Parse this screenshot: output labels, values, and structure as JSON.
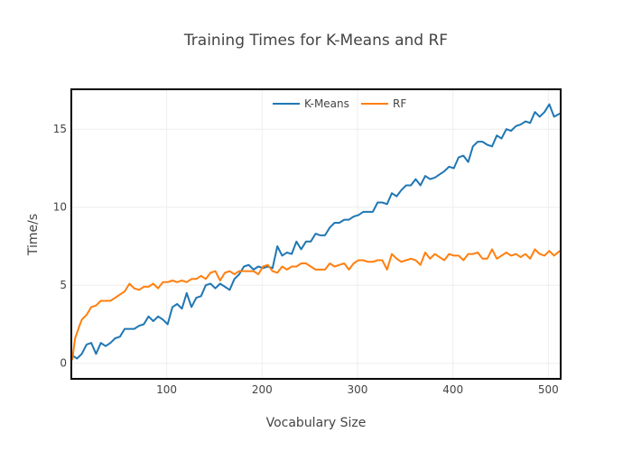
{
  "chart_data": {
    "type": "line",
    "title": "Training Times for K-Means and RF",
    "xlabel": "Vocabulary Size",
    "ylabel": "Time/s",
    "xlim": [
      1,
      512
    ],
    "ylim": [
      -1,
      17.5
    ],
    "xticks": [
      100,
      200,
      300,
      400,
      500
    ],
    "yticks": [
      0,
      5,
      10,
      15
    ],
    "grid": true,
    "legend_position": "top-center",
    "series": [
      {
        "name": "K-Means",
        "color": "#1f77b4",
        "points": [
          [
            1,
            0.5
          ],
          [
            6,
            0.3
          ],
          [
            11,
            0.6
          ],
          [
            16,
            1.2
          ],
          [
            21,
            1.3
          ],
          [
            26,
            0.6
          ],
          [
            31,
            1.3
          ],
          [
            36,
            1.1
          ],
          [
            41,
            1.3
          ],
          [
            46,
            1.6
          ],
          [
            51,
            1.7
          ],
          [
            56,
            2.2
          ],
          [
            61,
            2.2
          ],
          [
            66,
            2.2
          ],
          [
            71,
            2.4
          ],
          [
            76,
            2.5
          ],
          [
            81,
            3.0
          ],
          [
            86,
            2.7
          ],
          [
            91,
            3.0
          ],
          [
            96,
            2.8
          ],
          [
            101,
            2.5
          ],
          [
            106,
            3.6
          ],
          [
            111,
            3.8
          ],
          [
            116,
            3.5
          ],
          [
            121,
            4.5
          ],
          [
            126,
            3.6
          ],
          [
            131,
            4.2
          ],
          [
            136,
            4.3
          ],
          [
            141,
            5.0
          ],
          [
            146,
            5.1
          ],
          [
            151,
            4.8
          ],
          [
            156,
            5.1
          ],
          [
            161,
            4.9
          ],
          [
            166,
            4.7
          ],
          [
            171,
            5.4
          ],
          [
            176,
            5.7
          ],
          [
            181,
            6.2
          ],
          [
            186,
            6.3
          ],
          [
            191,
            6.0
          ],
          [
            196,
            6.2
          ],
          [
            201,
            6.1
          ],
          [
            206,
            6.2
          ],
          [
            211,
            6.1
          ],
          [
            216,
            7.5
          ],
          [
            221,
            6.9
          ],
          [
            226,
            7.1
          ],
          [
            231,
            7.0
          ],
          [
            236,
            7.8
          ],
          [
            241,
            7.3
          ],
          [
            246,
            7.8
          ],
          [
            251,
            7.8
          ],
          [
            256,
            8.3
          ],
          [
            261,
            8.2
          ],
          [
            266,
            8.2
          ],
          [
            271,
            8.7
          ],
          [
            276,
            9.0
          ],
          [
            281,
            9.0
          ],
          [
            286,
            9.2
          ],
          [
            291,
            9.2
          ],
          [
            296,
            9.4
          ],
          [
            301,
            9.5
          ],
          [
            306,
            9.7
          ],
          [
            311,
            9.7
          ],
          [
            316,
            9.7
          ],
          [
            321,
            10.3
          ],
          [
            326,
            10.3
          ],
          [
            331,
            10.2
          ],
          [
            336,
            10.9
          ],
          [
            341,
            10.7
          ],
          [
            346,
            11.1
          ],
          [
            351,
            11.4
          ],
          [
            356,
            11.4
          ],
          [
            361,
            11.8
          ],
          [
            366,
            11.4
          ],
          [
            371,
            12.0
          ],
          [
            376,
            11.8
          ],
          [
            381,
            11.9
          ],
          [
            386,
            12.1
          ],
          [
            391,
            12.3
          ],
          [
            396,
            12.6
          ],
          [
            401,
            12.5
          ],
          [
            406,
            13.2
          ],
          [
            411,
            13.3
          ],
          [
            416,
            12.9
          ],
          [
            421,
            13.9
          ],
          [
            426,
            14.2
          ],
          [
            431,
            14.2
          ],
          [
            436,
            14.0
          ],
          [
            441,
            13.9
          ],
          [
            446,
            14.6
          ],
          [
            451,
            14.4
          ],
          [
            456,
            15.0
          ],
          [
            461,
            14.9
          ],
          [
            466,
            15.2
          ],
          [
            471,
            15.3
          ],
          [
            476,
            15.5
          ],
          [
            481,
            15.4
          ],
          [
            486,
            16.1
          ],
          [
            491,
            15.8
          ],
          [
            496,
            16.1
          ],
          [
            501,
            16.6
          ],
          [
            506,
            15.8
          ],
          [
            512,
            16.0
          ]
        ]
      },
      {
        "name": "RF",
        "color": "#ff7f0e",
        "points": [
          [
            1,
            0.2
          ],
          [
            4,
            1.6
          ],
          [
            8,
            2.3
          ],
          [
            11,
            2.8
          ],
          [
            16,
            3.1
          ],
          [
            21,
            3.6
          ],
          [
            26,
            3.7
          ],
          [
            31,
            4.0
          ],
          [
            36,
            4.0
          ],
          [
            41,
            4.0
          ],
          [
            46,
            4.2
          ],
          [
            51,
            4.4
          ],
          [
            56,
            4.6
          ],
          [
            61,
            5.1
          ],
          [
            66,
            4.8
          ],
          [
            71,
            4.7
          ],
          [
            76,
            4.9
          ],
          [
            81,
            4.9
          ],
          [
            86,
            5.1
          ],
          [
            91,
            4.8
          ],
          [
            96,
            5.2
          ],
          [
            101,
            5.2
          ],
          [
            106,
            5.3
          ],
          [
            111,
            5.2
          ],
          [
            116,
            5.3
          ],
          [
            121,
            5.2
          ],
          [
            126,
            5.4
          ],
          [
            131,
            5.4
          ],
          [
            136,
            5.6
          ],
          [
            141,
            5.4
          ],
          [
            146,
            5.8
          ],
          [
            151,
            5.9
          ],
          [
            156,
            5.3
          ],
          [
            161,
            5.8
          ],
          [
            166,
            5.9
          ],
          [
            171,
            5.7
          ],
          [
            176,
            5.9
          ],
          [
            181,
            5.9
          ],
          [
            186,
            5.9
          ],
          [
            191,
            5.9
          ],
          [
            196,
            5.7
          ],
          [
            201,
            6.2
          ],
          [
            206,
            6.3
          ],
          [
            211,
            5.9
          ],
          [
            216,
            5.8
          ],
          [
            221,
            6.2
          ],
          [
            226,
            6.0
          ],
          [
            231,
            6.2
          ],
          [
            236,
            6.2
          ],
          [
            241,
            6.4
          ],
          [
            246,
            6.4
          ],
          [
            251,
            6.2
          ],
          [
            256,
            6.0
          ],
          [
            261,
            6.0
          ],
          [
            266,
            6.0
          ],
          [
            271,
            6.4
          ],
          [
            276,
            6.2
          ],
          [
            281,
            6.3
          ],
          [
            286,
            6.4
          ],
          [
            291,
            6.0
          ],
          [
            296,
            6.4
          ],
          [
            301,
            6.6
          ],
          [
            306,
            6.6
          ],
          [
            311,
            6.5
          ],
          [
            316,
            6.5
          ],
          [
            321,
            6.6
          ],
          [
            326,
            6.6
          ],
          [
            331,
            6.0
          ],
          [
            336,
            7.0
          ],
          [
            341,
            6.7
          ],
          [
            346,
            6.5
          ],
          [
            351,
            6.6
          ],
          [
            356,
            6.7
          ],
          [
            361,
            6.6
          ],
          [
            366,
            6.3
          ],
          [
            371,
            7.1
          ],
          [
            376,
            6.7
          ],
          [
            381,
            7.0
          ],
          [
            386,
            6.8
          ],
          [
            391,
            6.6
          ],
          [
            396,
            7.0
          ],
          [
            401,
            6.9
          ],
          [
            406,
            6.9
          ],
          [
            411,
            6.6
          ],
          [
            416,
            7.0
          ],
          [
            421,
            7.0
          ],
          [
            426,
            7.1
          ],
          [
            431,
            6.7
          ],
          [
            436,
            6.7
          ],
          [
            441,
            7.3
          ],
          [
            446,
            6.7
          ],
          [
            451,
            6.9
          ],
          [
            456,
            7.1
          ],
          [
            461,
            6.9
          ],
          [
            466,
            7.0
          ],
          [
            471,
            6.8
          ],
          [
            476,
            7.0
          ],
          [
            481,
            6.7
          ],
          [
            486,
            7.3
          ],
          [
            491,
            7.0
          ],
          [
            496,
            6.9
          ],
          [
            501,
            7.2
          ],
          [
            506,
            6.9
          ],
          [
            512,
            7.2
          ]
        ]
      }
    ]
  }
}
